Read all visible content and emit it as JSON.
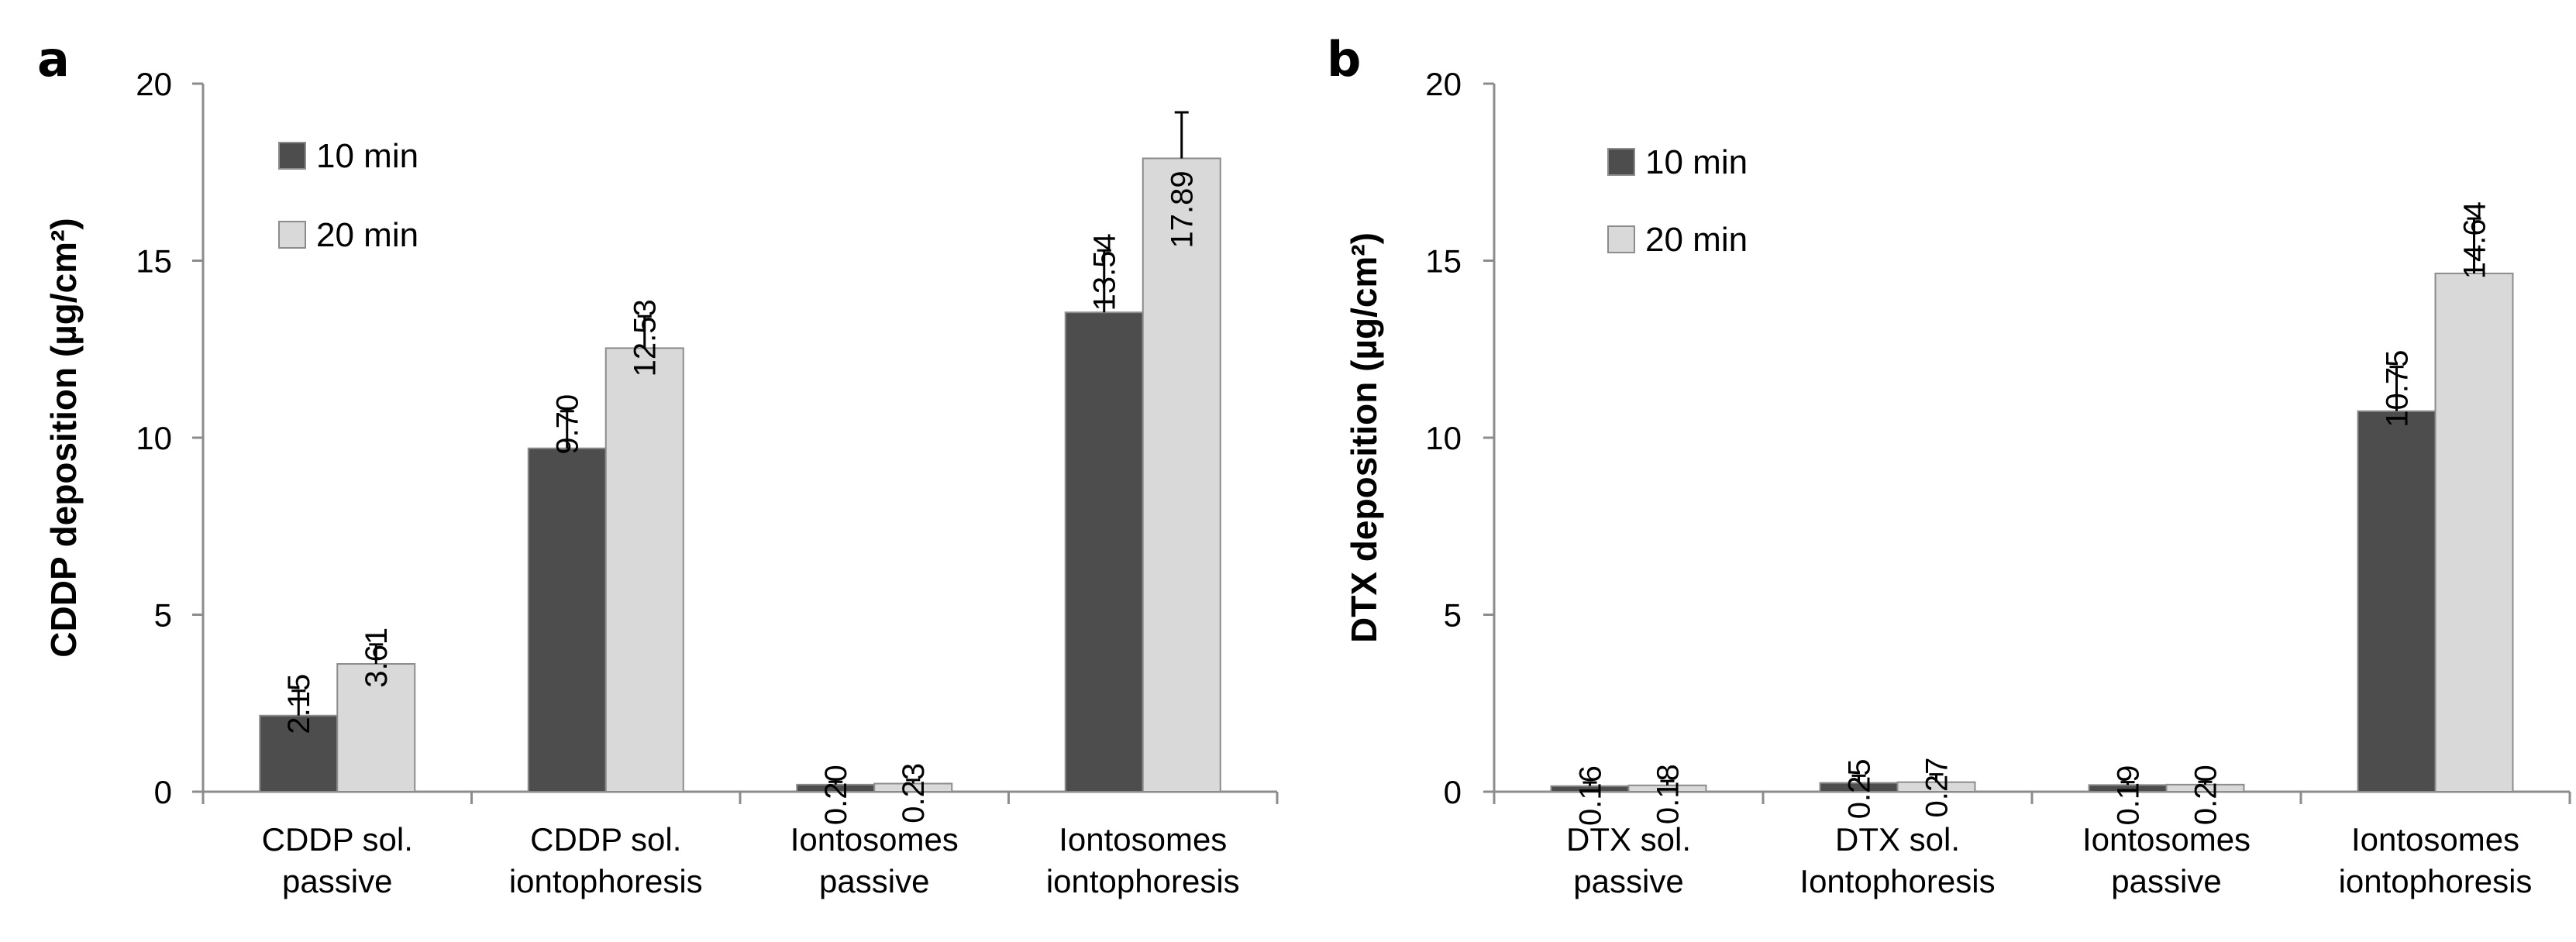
{
  "chart_data": [
    {
      "panel": "a",
      "type": "bar",
      "ylabel": "CDDP deposition (µg/cm²)",
      "ylim": [
        0,
        20
      ],
      "yticks": [
        0,
        5,
        10,
        15,
        20
      ],
      "categories": [
        [
          "CDDP sol.",
          "passive"
        ],
        [
          "CDDP sol.",
          "iontophoresis"
        ],
        [
          "Iontosomes",
          "passive"
        ],
        [
          "Iontosomes",
          "iontophoresis"
        ]
      ],
      "series": [
        {
          "name": "10 min",
          "color": "#4d4d4d",
          "values": [
            2.15,
            9.7,
            0.2,
            13.54
          ],
          "labels": [
            "2.15",
            "9.70",
            "0.20",
            "13.54"
          ],
          "errors": [
            0.7,
            1.05,
            0.08,
            1.75
          ]
        },
        {
          "name": "20 min",
          "color": "#d9d9d9",
          "values": [
            3.61,
            12.53,
            0.23,
            17.89
          ],
          "labels": [
            "3.61",
            "12.53",
            "0.23",
            "17.89"
          ],
          "errors": [
            0.55,
            0.9,
            0.1,
            1.3
          ]
        }
      ],
      "legend": "top-left"
    },
    {
      "panel": "b",
      "type": "bar",
      "ylabel": "DTX deposition (µg/cm²)",
      "ylim": [
        0,
        20
      ],
      "yticks": [
        0,
        5,
        10,
        15,
        20
      ],
      "categories": [
        [
          "DTX sol.",
          "passive"
        ],
        [
          "DTX sol.",
          "Iontophoresis"
        ],
        [
          "Iontosomes",
          "passive"
        ],
        [
          "Iontosomes",
          "iontophoresis"
        ]
      ],
      "series": [
        {
          "name": "10 min",
          "color": "#4d4d4d",
          "values": [
            0.16,
            0.25,
            0.19,
            10.75
          ],
          "labels": [
            "0.16",
            "0.25",
            "0.19",
            "10.75"
          ],
          "errors": [
            0.1,
            0.2,
            0.08,
            1.25
          ]
        },
        {
          "name": "20 min",
          "color": "#d9d9d9",
          "values": [
            0.18,
            0.27,
            0.2,
            14.64
          ],
          "labels": [
            "0.18",
            "0.27",
            "0.20",
            "14.64"
          ],
          "errors": [
            0.12,
            0.22,
            0.08,
            1.55
          ]
        }
      ],
      "legend": "top-left"
    }
  ]
}
